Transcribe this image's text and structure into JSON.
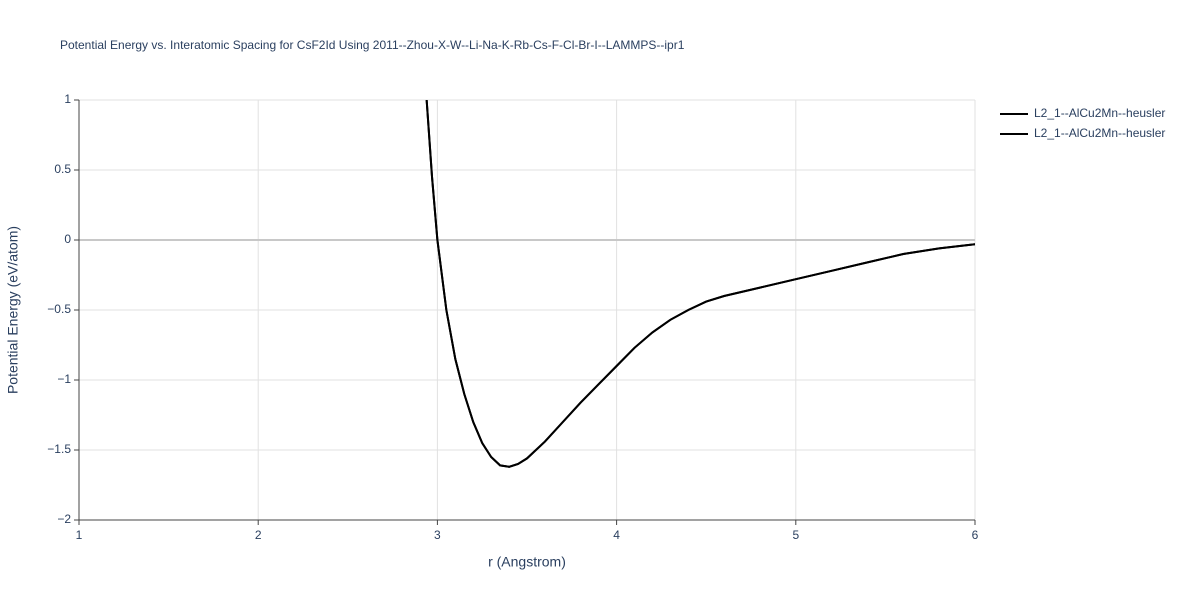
{
  "chart_data": {
    "type": "line",
    "title": "Potential Energy vs. Interatomic Spacing for CsF2Id Using 2011--Zhou-X-W--Li-Na-K-Rb-Cs-F-Cl-Br-I--LAMMPS--ipr1",
    "x_label": "r (Angstrom)",
    "y_label": "Potential Energy (eV/atom)",
    "x": [
      2.94,
      2.97,
      3.0,
      3.05,
      3.1,
      3.15,
      3.2,
      3.25,
      3.3,
      3.35,
      3.4,
      3.45,
      3.5,
      3.6,
      3.7,
      3.8,
      3.9,
      4.0,
      4.1,
      4.2,
      4.3,
      4.4,
      4.5,
      4.6,
      4.8,
      5.0,
      5.2,
      5.4,
      5.6,
      5.8,
      6.0
    ],
    "series": [
      {
        "name": "L2_1--AlCu2Mn--heusler",
        "color": "#000000",
        "values": [
          1,
          0.45,
          0,
          -0.5,
          -0.85,
          -1.1,
          -1.3,
          -1.45,
          -1.55,
          -1.61,
          -1.62,
          -1.6,
          -1.56,
          -1.44,
          -1.3,
          -1.16,
          -1.03,
          -0.9,
          -0.77,
          -0.66,
          -0.57,
          -0.5,
          -0.44,
          -0.4,
          -0.34,
          -0.28,
          -0.22,
          -0.16,
          -0.1,
          -0.06,
          -0.03
        ]
      },
      {
        "name": "L2_1--AlCu2Mn--heusler",
        "color": "#000000",
        "values": [
          1,
          0.45,
          0,
          -0.5,
          -0.85,
          -1.1,
          -1.3,
          -1.45,
          -1.55,
          -1.61,
          -1.62,
          -1.6,
          -1.56,
          -1.44,
          -1.3,
          -1.16,
          -1.03,
          -0.9,
          -0.77,
          -0.66,
          -0.57,
          -0.5,
          -0.44,
          -0.4,
          -0.34,
          -0.28,
          -0.22,
          -0.16,
          -0.1,
          -0.06,
          -0.03
        ]
      }
    ],
    "xlim": [
      1,
      6
    ],
    "ylim": [
      -2,
      1
    ],
    "xticks": [
      1,
      2,
      3,
      4,
      5,
      6
    ],
    "yticks": [
      {
        "value": -2,
        "label": "−2"
      },
      {
        "value": -1.5,
        "label": "−1.5"
      },
      {
        "value": -1,
        "label": "−1"
      },
      {
        "value": -0.5,
        "label": "−0.5"
      },
      0,
      0.5,
      1
    ],
    "grid": true,
    "legend": "outside-right"
  }
}
